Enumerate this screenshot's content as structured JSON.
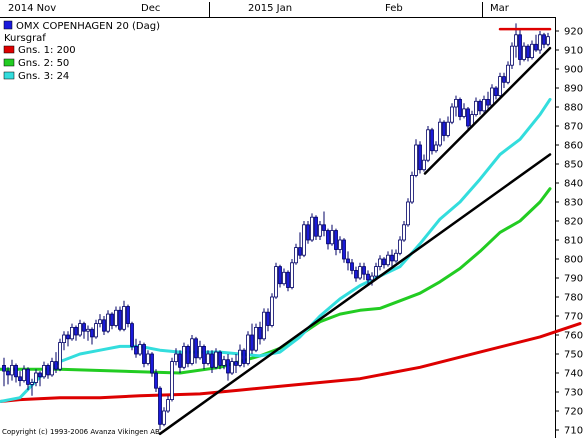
{
  "chart_data": {
    "type": "candlestick",
    "title": "OMX COPENHAGEN 20 (Dag)",
    "legend_heading": "Kursgraf",
    "legend_placement": "top-left",
    "x_tick_labels": [
      "2014 Nov",
      "Dec",
      "2015 Jan",
      "Feb",
      "Mar"
    ],
    "y_ticks": [
      710,
      720,
      730,
      740,
      750,
      760,
      770,
      780,
      790,
      800,
      810,
      820,
      830,
      840,
      850,
      860,
      870,
      880,
      890,
      900,
      910,
      920
    ],
    "ylim": [
      704,
      926
    ],
    "y_axis_side": "right",
    "grid": false,
    "copyright": "Copyright (c) 1993-2006 Avanza Vikingen AB",
    "colors": {
      "up_candle_fill": "#ffffff",
      "down_candle_fill": "#1a1adc",
      "candle_outline": "#000066",
      "ma200": "#dd0000",
      "ma50": "#22cc22",
      "ma24": "#33dddd",
      "trendline": "#000000",
      "resistance": "#dd0000",
      "title_marker": "#1a1adc"
    },
    "series": [
      {
        "name": "Gns. 1: 200",
        "color": "#dd0000",
        "points": [
          [
            0,
            725
          ],
          [
            20,
            726
          ],
          [
            60,
            727
          ],
          [
            100,
            727
          ],
          [
            140,
            728
          ],
          [
            200,
            729
          ],
          [
            240,
            731
          ],
          [
            300,
            734
          ],
          [
            360,
            737
          ],
          [
            420,
            743
          ],
          [
            480,
            751
          ],
          [
            540,
            759
          ],
          [
            580,
            766
          ]
        ]
      },
      {
        "name": "Gns. 2: 50",
        "color": "#22cc22",
        "points": [
          [
            0,
            742
          ],
          [
            60,
            742
          ],
          [
            120,
            741
          ],
          [
            180,
            740
          ],
          [
            220,
            743
          ],
          [
            240,
            746
          ],
          [
            260,
            749
          ],
          [
            280,
            753
          ],
          [
            300,
            760
          ],
          [
            320,
            767
          ],
          [
            340,
            771
          ],
          [
            360,
            773
          ],
          [
            380,
            774
          ],
          [
            400,
            778
          ],
          [
            420,
            782
          ],
          [
            440,
            788
          ],
          [
            460,
            795
          ],
          [
            480,
            804
          ],
          [
            500,
            814
          ],
          [
            520,
            820
          ],
          [
            540,
            830
          ],
          [
            550,
            837
          ]
        ]
      },
      {
        "name": "Gns. 3: 24",
        "color": "#33dddd",
        "points": [
          [
            0,
            725
          ],
          [
            20,
            727
          ],
          [
            40,
            738
          ],
          [
            60,
            746
          ],
          [
            80,
            750
          ],
          [
            100,
            752
          ],
          [
            120,
            754
          ],
          [
            140,
            754
          ],
          [
            160,
            752
          ],
          [
            180,
            751
          ],
          [
            200,
            751
          ],
          [
            220,
            751
          ],
          [
            240,
            750
          ],
          [
            260,
            749
          ],
          [
            280,
            751
          ],
          [
            300,
            759
          ],
          [
            320,
            770
          ],
          [
            340,
            779
          ],
          [
            360,
            786
          ],
          [
            380,
            791
          ],
          [
            400,
            796
          ],
          [
            420,
            808
          ],
          [
            440,
            821
          ],
          [
            460,
            830
          ],
          [
            480,
            842
          ],
          [
            500,
            855
          ],
          [
            520,
            863
          ],
          [
            540,
            876
          ],
          [
            550,
            884
          ]
        ]
      }
    ],
    "annotation_lines": [
      {
        "kind": "trend",
        "points": [
          [
            160,
            708
          ],
          [
            550,
            855
          ]
        ]
      },
      {
        "kind": "trend",
        "points": [
          [
            425,
            845
          ],
          [
            550,
            911
          ]
        ]
      },
      {
        "kind": "resistance",
        "points": [
          [
            500,
            921
          ],
          [
            550,
            921
          ]
        ]
      }
    ],
    "candles": [
      [
        4,
        744,
        748,
        733,
        741
      ],
      [
        8,
        741,
        743,
        734,
        739
      ],
      [
        12,
        739,
        747,
        736,
        744
      ],
      [
        16,
        744,
        745,
        735,
        738
      ],
      [
        20,
        738,
        741,
        733,
        736
      ],
      [
        24,
        736,
        744,
        735,
        742
      ],
      [
        28,
        742,
        743,
        731,
        734
      ],
      [
        32,
        734,
        737,
        728,
        735
      ],
      [
        36,
        735,
        742,
        733,
        740
      ],
      [
        40,
        740,
        741,
        733,
        738
      ],
      [
        44,
        738,
        746,
        737,
        744
      ],
      [
        48,
        744,
        745,
        737,
        739
      ],
      [
        52,
        739,
        748,
        738,
        746
      ],
      [
        56,
        746,
        751,
        740,
        742
      ],
      [
        60,
        742,
        758,
        741,
        756
      ],
      [
        64,
        756,
        762,
        752,
        760
      ],
      [
        68,
        760,
        762,
        754,
        758
      ],
      [
        72,
        758,
        766,
        757,
        764
      ],
      [
        76,
        764,
        765,
        757,
        760
      ],
      [
        80,
        760,
        768,
        759,
        766
      ],
      [
        84,
        766,
        767,
        758,
        762
      ],
      [
        88,
        762,
        765,
        757,
        763
      ],
      [
        92,
        763,
        764,
        755,
        759
      ],
      [
        96,
        759,
        768,
        758,
        766
      ],
      [
        100,
        766,
        771,
        764,
        768
      ],
      [
        104,
        768,
        770,
        760,
        762
      ],
      [
        108,
        762,
        773,
        761,
        771
      ],
      [
        112,
        771,
        772,
        763,
        765
      ],
      [
        116,
        765,
        775,
        764,
        773
      ],
      [
        120,
        773,
        775,
        762,
        763
      ],
      [
        124,
        763,
        778,
        762,
        775
      ],
      [
        128,
        775,
        776,
        764,
        766
      ],
      [
        132,
        766,
        767,
        752,
        754
      ],
      [
        136,
        754,
        758,
        748,
        750
      ],
      [
        140,
        750,
        757,
        749,
        755
      ],
      [
        144,
        755,
        756,
        743,
        745
      ],
      [
        148,
        745,
        752,
        744,
        750
      ],
      [
        152,
        750,
        751,
        738,
        740
      ],
      [
        156,
        740,
        742,
        730,
        732
      ],
      [
        160,
        732,
        733,
        710,
        713
      ],
      [
        164,
        713,
        722,
        712,
        720
      ],
      [
        168,
        720,
        728,
        719,
        726
      ],
      [
        172,
        726,
        748,
        725,
        746
      ],
      [
        176,
        746,
        753,
        744,
        750
      ],
      [
        180,
        750,
        752,
        740,
        743
      ],
      [
        184,
        743,
        756,
        742,
        754
      ],
      [
        188,
        754,
        755,
        743,
        745
      ],
      [
        192,
        745,
        760,
        744,
        758
      ],
      [
        196,
        758,
        759,
        745,
        748
      ],
      [
        200,
        748,
        757,
        747,
        754
      ],
      [
        204,
        754,
        755,
        742,
        745
      ],
      [
        208,
        745,
        752,
        744,
        750
      ],
      [
        212,
        750,
        752,
        740,
        743
      ],
      [
        216,
        743,
        753,
        742,
        751
      ],
      [
        220,
        751,
        752,
        742,
        744
      ],
      [
        224,
        744,
        749,
        742,
        747
      ],
      [
        228,
        747,
        750,
        736,
        740
      ],
      [
        232,
        740,
        748,
        739,
        746
      ],
      [
        236,
        746,
        750,
        740,
        744
      ],
      [
        240,
        744,
        755,
        743,
        752
      ],
      [
        244,
        752,
        753,
        743,
        745
      ],
      [
        248,
        745,
        762,
        744,
        760
      ],
      [
        252,
        760,
        766,
        750,
        752
      ],
      [
        256,
        752,
        766,
        751,
        764
      ],
      [
        260,
        764,
        767,
        755,
        758
      ],
      [
        264,
        758,
        774,
        757,
        772
      ],
      [
        268,
        772,
        774,
        762,
        765
      ],
      [
        272,
        765,
        782,
        764,
        780
      ],
      [
        276,
        780,
        798,
        779,
        796
      ],
      [
        280,
        796,
        797,
        785,
        787
      ],
      [
        284,
        787,
        795,
        786,
        793
      ],
      [
        288,
        793,
        794,
        783,
        785
      ],
      [
        292,
        785,
        800,
        784,
        798
      ],
      [
        296,
        798,
        808,
        797,
        806
      ],
      [
        300,
        806,
        814,
        800,
        802
      ],
      [
        304,
        802,
        820,
        801,
        818
      ],
      [
        308,
        818,
        820,
        808,
        810
      ],
      [
        312,
        810,
        824,
        809,
        822
      ],
      [
        316,
        822,
        823,
        810,
        812
      ],
      [
        320,
        812,
        820,
        810,
        818
      ],
      [
        324,
        818,
        825,
        812,
        815
      ],
      [
        328,
        815,
        816,
        805,
        808
      ],
      [
        332,
        808,
        818,
        807,
        815
      ],
      [
        336,
        815,
        816,
        802,
        805
      ],
      [
        340,
        805,
        812,
        803,
        810
      ],
      [
        344,
        810,
        811,
        798,
        800
      ],
      [
        348,
        800,
        804,
        794,
        798
      ],
      [
        352,
        798,
        800,
        792,
        794
      ],
      [
        356,
        794,
        796,
        788,
        790
      ],
      [
        360,
        790,
        798,
        789,
        796
      ],
      [
        364,
        796,
        798,
        789,
        792
      ],
      [
        368,
        792,
        794,
        786,
        789
      ],
      [
        372,
        789,
        793,
        786,
        791
      ],
      [
        376,
        791,
        798,
        790,
        796
      ],
      [
        380,
        796,
        802,
        794,
        800
      ],
      [
        384,
        800,
        801,
        795,
        797
      ],
      [
        388,
        797,
        804,
        796,
        802
      ],
      [
        392,
        802,
        805,
        796,
        799
      ],
      [
        396,
        799,
        805,
        798,
        803
      ],
      [
        400,
        803,
        812,
        802,
        810
      ],
      [
        404,
        810,
        820,
        809,
        818
      ],
      [
        408,
        818,
        832,
        817,
        830
      ],
      [
        412,
        830,
        846,
        829,
        844
      ],
      [
        416,
        844,
        863,
        843,
        860
      ],
      [
        420,
        860,
        862,
        845,
        847
      ],
      [
        424,
        847,
        855,
        846,
        852
      ],
      [
        428,
        852,
        870,
        851,
        868
      ],
      [
        432,
        868,
        869,
        855,
        857
      ],
      [
        436,
        857,
        862,
        856,
        860
      ],
      [
        440,
        860,
        874,
        859,
        872
      ],
      [
        444,
        872,
        873,
        862,
        865
      ],
      [
        448,
        865,
        875,
        864,
        872
      ],
      [
        452,
        872,
        882,
        871,
        880
      ],
      [
        456,
        880,
        886,
        875,
        884
      ],
      [
        460,
        884,
        885,
        873,
        875
      ],
      [
        464,
        875,
        882,
        874,
        879
      ],
      [
        468,
        879,
        880,
        868,
        870
      ],
      [
        472,
        870,
        878,
        869,
        876
      ],
      [
        476,
        876,
        885,
        875,
        883
      ],
      [
        480,
        883,
        884,
        876,
        878
      ],
      [
        484,
        878,
        886,
        877,
        884
      ],
      [
        488,
        884,
        888,
        879,
        881
      ],
      [
        492,
        881,
        892,
        880,
        890
      ],
      [
        496,
        890,
        891,
        884,
        886
      ],
      [
        500,
        886,
        898,
        885,
        896
      ],
      [
        504,
        896,
        898,
        890,
        893
      ],
      [
        508,
        893,
        904,
        892,
        902
      ],
      [
        512,
        902,
        914,
        900,
        912
      ],
      [
        516,
        912,
        924,
        906,
        918
      ],
      [
        520,
        918,
        921,
        902,
        905
      ],
      [
        524,
        905,
        914,
        904,
        912
      ],
      [
        528,
        912,
        913,
        904,
        906
      ],
      [
        532,
        906,
        915,
        905,
        913
      ],
      [
        536,
        913,
        918,
        909,
        910
      ],
      [
        540,
        910,
        920,
        908,
        918
      ],
      [
        544,
        918,
        919,
        911,
        913
      ],
      [
        548,
        913,
        919,
        912,
        917
      ]
    ]
  }
}
